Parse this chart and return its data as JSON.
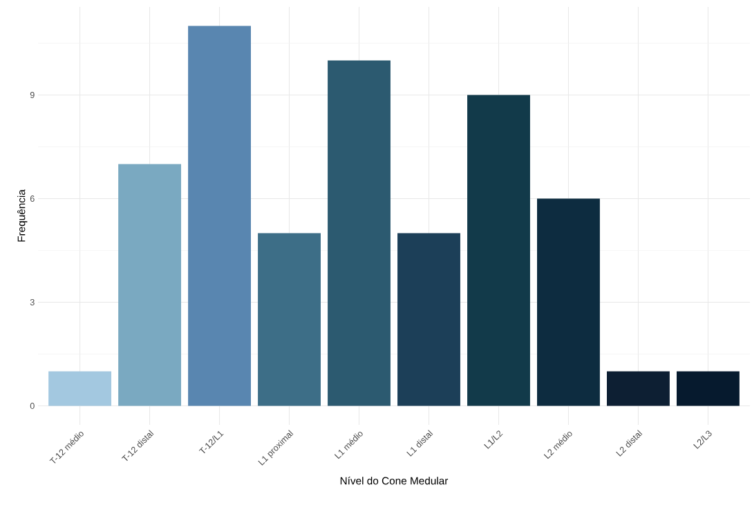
{
  "chart_data": {
    "type": "bar",
    "xlabel": "Nível do Cone Medular",
    "ylabel": "Frequência",
    "categories": [
      "T-12 médio",
      "T-12 distal",
      "T-12/L1",
      "L1 proximal",
      "L1 médio",
      "L1 distal",
      "L1/L2",
      "L2 médio",
      "L2 distal",
      "L2/L3"
    ],
    "values": [
      1,
      7,
      11,
      5,
      10,
      5,
      9,
      6,
      1,
      1
    ],
    "colors": [
      "#a3c8e0",
      "#7aa9c1",
      "#5986b0",
      "#3d6e87",
      "#2c5a70",
      "#1c3f58",
      "#123a4a",
      "#0d2c40",
      "#0d1f33",
      "#061a2e"
    ],
    "ylim": [
      -0.55,
      11.55
    ],
    "yticks": [
      0,
      3,
      6,
      9
    ],
    "grid": true
  }
}
